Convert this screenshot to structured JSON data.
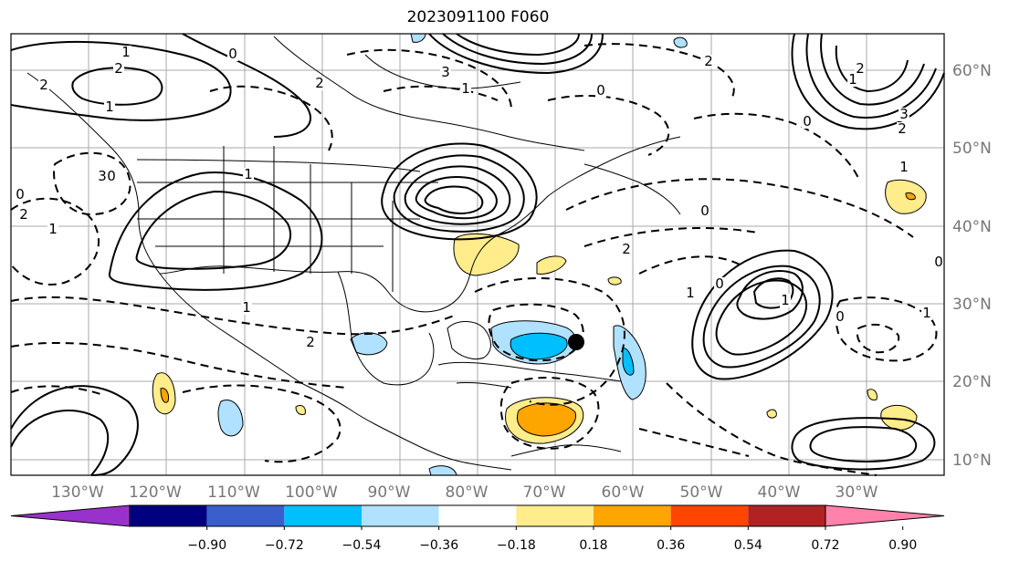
{
  "title": "2023091100 F060",
  "map": {
    "lon_ticks": [
      "130°W",
      "120°W",
      "110°W",
      "100°W",
      "90°W",
      "80°W",
      "70°W",
      "60°W",
      "50°W",
      "40°W",
      "30°W"
    ],
    "lat_ticks": [
      "60°N",
      "50°N",
      "40°N",
      "30°N",
      "20°N",
      "10°N"
    ],
    "contour_labels": [
      "1",
      "2",
      "0",
      "1",
      "2",
      "3",
      "0",
      "2",
      "1",
      "0",
      "1",
      "2",
      "3",
      "1",
      "0",
      "2",
      "2",
      "1",
      "0",
      "3",
      "2",
      "1",
      "0",
      "2",
      "1",
      "0",
      "1",
      "0",
      "1",
      "0",
      "1",
      "2"
    ]
  },
  "colorbar": {
    "colors": [
      "#9932cc",
      "#000080",
      "#3a5fcd",
      "#00bfff",
      "#b0e2ff",
      "#ffffff",
      "#ffec8b",
      "#ffa500",
      "#ff4500",
      "#b22222",
      "#ff82ab"
    ],
    "tick_labels": [
      "−0.90",
      "−0.72",
      "−0.54",
      "−0.36",
      "−0.18",
      "0.18",
      "0.36",
      "0.54",
      "0.72",
      "0.90"
    ]
  },
  "marker": {
    "label": "storm-center",
    "color": "#000000"
  }
}
